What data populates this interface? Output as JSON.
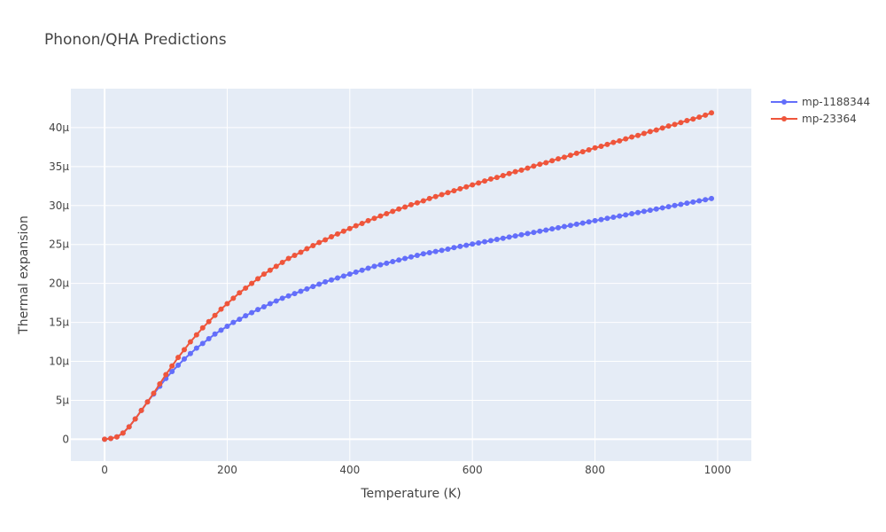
{
  "chart_data": {
    "type": "line",
    "title": "Phonon/QHA Predictions",
    "xlabel": "Temperature (K)",
    "ylabel": "Thermal expansion",
    "xlim": [
      -55,
      1055
    ],
    "ylim": [
      -2.8e-06,
      4.5e-05
    ],
    "x_ticks": [
      0,
      200,
      400,
      600,
      800,
      1000
    ],
    "x_tick_labels": [
      "0",
      "200",
      "400",
      "600",
      "800",
      "1000"
    ],
    "y_ticks": [
      0,
      5e-06,
      1e-05,
      1.5e-05,
      2e-05,
      2.5e-05,
      3e-05,
      3.5e-05,
      4e-05
    ],
    "y_tick_labels": [
      "0",
      "5μ",
      "10μ",
      "15μ",
      "20μ",
      "25μ",
      "30μ",
      "35μ",
      "40μ"
    ],
    "grid": true,
    "legend_position": "top-right",
    "x": [
      0,
      10,
      20,
      30,
      40,
      50,
      60,
      70,
      80,
      90,
      100,
      110,
      120,
      130,
      140,
      150,
      160,
      170,
      180,
      190,
      200,
      210,
      220,
      230,
      240,
      250,
      260,
      270,
      280,
      290,
      300,
      310,
      320,
      330,
      340,
      350,
      360,
      370,
      380,
      390,
      400,
      410,
      420,
      430,
      440,
      450,
      460,
      470,
      480,
      490,
      500,
      510,
      520,
      530,
      540,
      550,
      560,
      570,
      580,
      590,
      600,
      610,
      620,
      630,
      640,
      650,
      660,
      670,
      680,
      690,
      700,
      710,
      720,
      730,
      740,
      750,
      760,
      770,
      780,
      790,
      800,
      810,
      820,
      830,
      840,
      850,
      860,
      870,
      880,
      890,
      900,
      910,
      920,
      930,
      940,
      950,
      960,
      970,
      980,
      990
    ],
    "series": [
      {
        "name": "mp-1188344",
        "color": "#636efa",
        "values": [
          0,
          1e-07,
          3e-07,
          8e-07,
          1.6e-06,
          2.6e-06,
          3.7e-06,
          4.8e-06,
          5.8e-06,
          6.8e-06,
          7.8e-06,
          8.7e-06,
          9.5e-06,
          1.03e-05,
          1.1e-05,
          1.17e-05,
          1.23e-05,
          1.29e-05,
          1.35e-05,
          1.4e-05,
          1.45e-05,
          1.5e-05,
          1.54e-05,
          1.585e-05,
          1.625e-05,
          1.665e-05,
          1.7e-05,
          1.74e-05,
          1.775e-05,
          1.81e-05,
          1.84e-05,
          1.87e-05,
          1.9e-05,
          1.93e-05,
          1.96e-05,
          1.99e-05,
          2.02e-05,
          2.045e-05,
          2.07e-05,
          2.095e-05,
          2.12e-05,
          2.145e-05,
          2.17e-05,
          2.195e-05,
          2.22e-05,
          2.24e-05,
          2.26e-05,
          2.28e-05,
          2.3e-05,
          2.32e-05,
          2.34e-05,
          2.36e-05,
          2.38e-05,
          2.395e-05,
          2.41e-05,
          2.425e-05,
          2.44e-05,
          2.46e-05,
          2.475e-05,
          2.49e-05,
          2.505e-05,
          2.52e-05,
          2.535e-05,
          2.55e-05,
          2.565e-05,
          2.58e-05,
          2.595e-05,
          2.61e-05,
          2.625e-05,
          2.64e-05,
          2.655e-05,
          2.67e-05,
          2.685e-05,
          2.7e-05,
          2.715e-05,
          2.73e-05,
          2.745e-05,
          2.76e-05,
          2.775e-05,
          2.79e-05,
          2.805e-05,
          2.82e-05,
          2.835e-05,
          2.85e-05,
          2.865e-05,
          2.88e-05,
          2.895e-05,
          2.91e-05,
          2.925e-05,
          2.94e-05,
          2.955e-05,
          2.97e-05,
          2.985e-05,
          3e-05,
          3.015e-05,
          3.03e-05,
          3.045e-05,
          3.06e-05,
          3.075e-05,
          3.09e-05
        ]
      },
      {
        "name": "mp-23364",
        "color": "#ef553b",
        "values": [
          0,
          1e-07,
          3e-07,
          8e-07,
          1.6e-06,
          2.6e-06,
          3.7e-06,
          4.8e-06,
          5.9e-06,
          7.1e-06,
          8.3e-06,
          9.4e-06,
          1.05e-05,
          1.15e-05,
          1.25e-05,
          1.34e-05,
          1.43e-05,
          1.51e-05,
          1.59e-05,
          1.67e-05,
          1.74e-05,
          1.81e-05,
          1.88e-05,
          1.94e-05,
          2e-05,
          2.06e-05,
          2.12e-05,
          2.17e-05,
          2.22e-05,
          2.27e-05,
          2.32e-05,
          2.36e-05,
          2.4e-05,
          2.445e-05,
          2.485e-05,
          2.525e-05,
          2.56e-05,
          2.6e-05,
          2.635e-05,
          2.67e-05,
          2.705e-05,
          2.74e-05,
          2.77e-05,
          2.805e-05,
          2.835e-05,
          2.865e-05,
          2.895e-05,
          2.925e-05,
          2.955e-05,
          2.98e-05,
          3.01e-05,
          3.035e-05,
          3.06e-05,
          3.09e-05,
          3.115e-05,
          3.14e-05,
          3.165e-05,
          3.19e-05,
          3.215e-05,
          3.24e-05,
          3.265e-05,
          3.29e-05,
          3.315e-05,
          3.34e-05,
          3.36e-05,
          3.385e-05,
          3.41e-05,
          3.435e-05,
          3.455e-05,
          3.48e-05,
          3.505e-05,
          3.53e-05,
          3.55e-05,
          3.575e-05,
          3.6e-05,
          3.62e-05,
          3.645e-05,
          3.67e-05,
          3.69e-05,
          3.715e-05,
          3.74e-05,
          3.76e-05,
          3.785e-05,
          3.81e-05,
          3.83e-05,
          3.855e-05,
          3.88e-05,
          3.9e-05,
          3.925e-05,
          3.95e-05,
          3.97e-05,
          3.995e-05,
          4.02e-05,
          4.04e-05,
          4.065e-05,
          4.09e-05,
          4.11e-05,
          4.135e-05,
          4.16e-05,
          4.19e-05
        ]
      }
    ]
  }
}
